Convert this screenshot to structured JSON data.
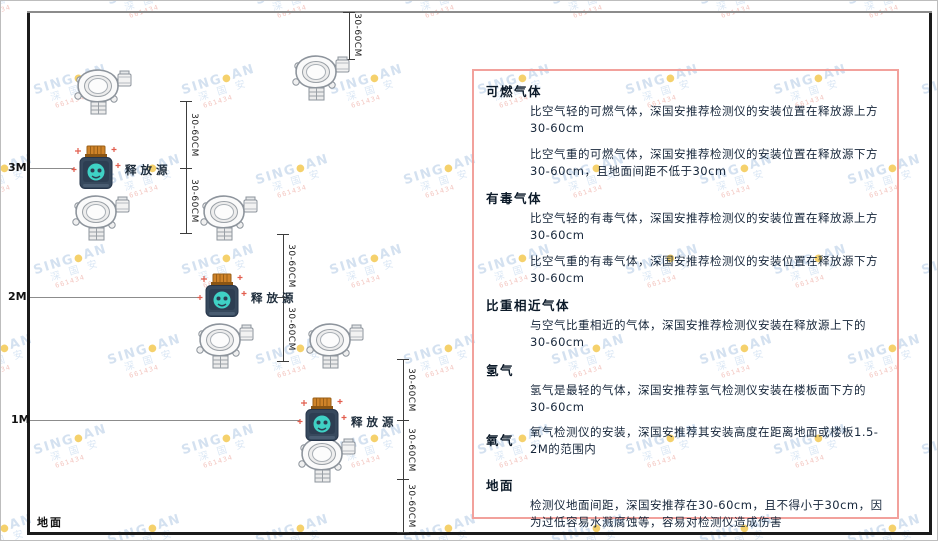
{
  "watermark": {
    "brand_left": "SING",
    "brand_right": "AN",
    "dot": "●",
    "cjk": "深 国 安",
    "code": "661434",
    "text_color": "#c6d8ec",
    "dot_color": "#f2c23c",
    "code_color": "#f0b3ab"
  },
  "diagram": {
    "dimension_label": "30-60CM",
    "release_source_label": "释放源",
    "ground_label": "地面",
    "height_labels": [
      {
        "label": "3M"
      },
      {
        "label": "2M"
      },
      {
        "label": "1M"
      }
    ],
    "icons": {
      "detector": "gas-detector",
      "release_source": "release-source-bottle"
    },
    "colors": {
      "wall": "#1b1b1b",
      "height_line": "#8c8c8c",
      "dimension_line": "#3c3c3c",
      "source_body": "#37495d",
      "source_cap": "#cf8329",
      "source_face": "#3fd1c5",
      "sparkle": "#e25d4e"
    }
  },
  "panel": {
    "border_color": "#f2a19c",
    "sections": [
      {
        "heading": "可燃气体",
        "paragraphs": [
          "比空气轻的可燃气体，深国安推荐检测仪的安装位置在释放源上方30-60cm",
          "比空气重的可燃气体，深国安推荐检测仪的安装位置在释放源下方30-60cm，且地面间距不低于30cm"
        ]
      },
      {
        "heading": "有毒气体",
        "paragraphs": [
          "比空气轻的有毒气体，深国安推荐检测仪的安装位置在释放源上方30-60cm",
          "比空气重的有毒气体，深国安推荐检测仪的安装位置在释放源下方30-60cm"
        ]
      },
      {
        "heading": "比重相近气体",
        "paragraphs": [
          "与空气比重相近的气体，深国安推荐检测仪安装在释放源上下的30-60cm"
        ]
      },
      {
        "heading": "氢气",
        "paragraphs": [
          "氢气是最轻的气体，深国安推荐氢气检测仪安装在楼板面下方的30-60cm"
        ]
      },
      {
        "heading": "氧气",
        "paragraphs": [
          "氧气检测仪的安装，深国安推荐其安装高度在距离地面或楼板1.5-2M的范围内"
        ]
      },
      {
        "heading": "地面",
        "paragraphs": [
          "检测仪地面间距，深国安推荐在30-60cm，且不得小于30cm，因为过低容易水溅腐蚀等，容易对检测仪造成伤害"
        ]
      }
    ]
  }
}
